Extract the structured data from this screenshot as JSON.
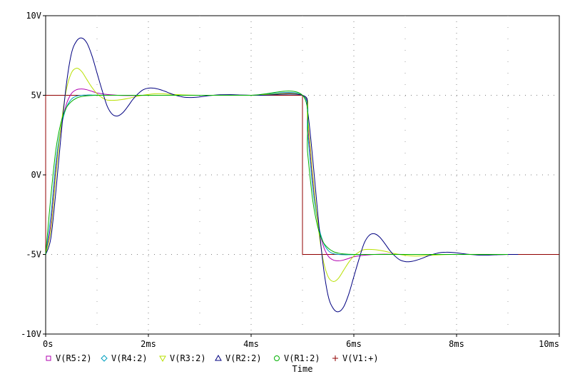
{
  "chart_data": {
    "type": "line",
    "xlabel": "Time",
    "ylabel": "",
    "xlim": [
      0,
      10
    ],
    "ylim": [
      -10,
      10
    ],
    "x_unit": "ms",
    "y_unit": "V",
    "x_ticks": [
      {
        "value": 0,
        "label": "0s"
      },
      {
        "value": 2,
        "label": "2ms"
      },
      {
        "value": 4,
        "label": "4ms"
      },
      {
        "value": 6,
        "label": "6ms"
      },
      {
        "value": 8,
        "label": "8ms"
      },
      {
        "value": 10,
        "label": "10ms"
      }
    ],
    "y_ticks": [
      {
        "value": 10,
        "label": "10V"
      },
      {
        "value": 5,
        "label": "5V"
      },
      {
        "value": 0,
        "label": "0V"
      },
      {
        "value": -5,
        "label": "-5V"
      },
      {
        "value": -10,
        "label": "-10V"
      }
    ],
    "grid": "dotted",
    "legend_position": "bottom-left",
    "series": [
      {
        "name": "V(R5:2)",
        "color": "#b000b0",
        "marker": "square",
        "x": [
          0,
          0.1,
          0.2,
          0.3,
          0.4,
          0.5,
          0.6,
          0.7,
          0.8,
          0.9,
          1.0,
          1.2,
          1.4,
          1.6,
          2.0,
          3.0,
          4.0,
          5.0,
          5.1,
          5.2,
          5.3,
          5.4,
          5.5,
          5.6,
          5.7,
          5.8,
          5.9,
          6.0,
          6.2,
          6.4,
          6.6,
          7.0,
          8.0,
          9.0
        ],
        "y": [
          -5,
          -3.1,
          0.4,
          2.9,
          4.4,
          5.1,
          5.35,
          5.4,
          5.35,
          5.25,
          5.15,
          5.05,
          5.0,
          4.98,
          5.0,
          5.0,
          5.0,
          5.0,
          3.1,
          -0.4,
          -2.9,
          -4.4,
          -5.1,
          -5.35,
          -5.4,
          -5.35,
          -5.25,
          -5.15,
          -5.05,
          -5.0,
          -4.98,
          -5.0,
          -5.0,
          -5.0
        ]
      },
      {
        "name": "V(R4:2)",
        "color": "#00a0c0",
        "marker": "diamond",
        "x": [
          0,
          0.1,
          0.2,
          0.3,
          0.4,
          0.5,
          0.6,
          0.7,
          0.8,
          0.9,
          1.0,
          1.2,
          1.5,
          2.0,
          3.0,
          4.0,
          5.0,
          5.1,
          5.2,
          5.3,
          5.4,
          5.5,
          5.6,
          5.7,
          5.8,
          5.9,
          6.0,
          6.2,
          6.5,
          7.0,
          8.0,
          9.0
        ],
        "y": [
          -5,
          -2.6,
          0.8,
          3.0,
          4.2,
          4.75,
          4.95,
          5.0,
          5.02,
          5.02,
          5.01,
          5.0,
          5.0,
          5.0,
          5.0,
          5.0,
          5.0,
          2.6,
          -0.8,
          -3.0,
          -4.2,
          -4.75,
          -4.95,
          -5.0,
          -5.02,
          -5.02,
          -5.01,
          -5.0,
          -5.0,
          -5.0,
          -5.0,
          -5.0
        ]
      },
      {
        "name": "V(R3:2)",
        "color": "#b8e000",
        "marker": "triangle-down",
        "x": [
          0,
          0.1,
          0.2,
          0.3,
          0.4,
          0.5,
          0.6,
          0.7,
          0.8,
          0.9,
          1.0,
          1.1,
          1.2,
          1.4,
          1.6,
          1.8,
          2.0,
          2.2,
          2.5,
          3.0,
          4.0,
          5.0,
          5.1,
          5.2,
          5.3,
          5.4,
          5.5,
          5.6,
          5.7,
          5.8,
          5.9,
          6.0,
          6.1,
          6.2,
          6.4,
          6.6,
          6.8,
          7.0,
          7.2,
          7.5,
          8.0,
          9.0
        ],
        "y": [
          -5,
          -3.5,
          0.0,
          3.1,
          5.3,
          6.4,
          6.7,
          6.5,
          6.0,
          5.5,
          5.1,
          4.85,
          4.7,
          4.7,
          4.8,
          4.95,
          5.05,
          5.1,
          5.05,
          5.0,
          5.0,
          5.0,
          3.5,
          0.0,
          -3.1,
          -5.3,
          -6.4,
          -6.7,
          -6.5,
          -6.0,
          -5.5,
          -5.1,
          -4.85,
          -4.7,
          -4.7,
          -4.8,
          -4.95,
          -5.05,
          -5.1,
          -5.05,
          -5.0,
          -5.0
        ]
      },
      {
        "name": "V(R2:2)",
        "color": "#000080",
        "marker": "triangle-up",
        "x": [
          0,
          0.1,
          0.2,
          0.3,
          0.4,
          0.5,
          0.6,
          0.7,
          0.8,
          0.9,
          1.0,
          1.1,
          1.2,
          1.3,
          1.4,
          1.5,
          1.6,
          1.7,
          1.8,
          1.9,
          2.0,
          2.1,
          2.2,
          2.3,
          2.4,
          2.5,
          2.6,
          2.7,
          2.8,
          2.9,
          3.0,
          3.2,
          3.4,
          3.6,
          3.8,
          4.0,
          4.2,
          5.0,
          5.1,
          5.2,
          5.3,
          5.4,
          5.5,
          5.6,
          5.7,
          5.8,
          5.9,
          6.0,
          6.1,
          6.2,
          6.3,
          6.4,
          6.5,
          6.6,
          6.7,
          6.8,
          6.9,
          7.0,
          7.1,
          7.2,
          7.3,
          7.4,
          7.5,
          7.6,
          7.7,
          7.8,
          7.9,
          8.0,
          8.2,
          8.4,
          8.6,
          8.8,
          9.0,
          9.2
        ],
        "y": [
          -5,
          -4.0,
          -1.0,
          2.5,
          5.6,
          7.6,
          8.4,
          8.6,
          8.3,
          7.5,
          6.4,
          5.3,
          4.3,
          3.8,
          3.7,
          3.9,
          4.3,
          4.75,
          5.1,
          5.35,
          5.45,
          5.45,
          5.38,
          5.28,
          5.15,
          5.03,
          4.94,
          4.88,
          4.86,
          4.87,
          4.9,
          4.98,
          5.03,
          5.04,
          5.02,
          5.0,
          5.0,
          5.0,
          4.0,
          1.0,
          -2.5,
          -5.6,
          -7.6,
          -8.4,
          -8.6,
          -8.3,
          -7.5,
          -6.4,
          -5.3,
          -4.3,
          -3.8,
          -3.7,
          -3.9,
          -4.3,
          -4.75,
          -5.1,
          -5.35,
          -5.45,
          -5.45,
          -5.38,
          -5.28,
          -5.15,
          -5.03,
          -4.94,
          -4.88,
          -4.86,
          -4.87,
          -4.9,
          -4.98,
          -5.03,
          -5.04,
          -5.02,
          -5.0,
          -5.0
        ]
      },
      {
        "name": "V(R1:2)",
        "color": "#00b000",
        "marker": "circle",
        "x": [
          0,
          0.1,
          0.2,
          0.3,
          0.4,
          0.5,
          0.6,
          0.7,
          0.8,
          1.0,
          1.2,
          1.5,
          2.0,
          3.0,
          4.0,
          5.0,
          5.1,
          5.2,
          5.3,
          5.4,
          5.5,
          5.6,
          5.7,
          5.8,
          6.0,
          6.2,
          6.5,
          7.0,
          8.0,
          9.0
        ],
        "y": [
          -5,
          -1.4,
          1.6,
          3.3,
          4.2,
          4.6,
          4.82,
          4.92,
          4.97,
          5.0,
          5.0,
          5.0,
          5.0,
          5.0,
          5.0,
          5.0,
          1.4,
          -1.6,
          -3.3,
          -4.2,
          -4.6,
          -4.82,
          -4.92,
          -4.97,
          -5.0,
          -5.0,
          -5.0,
          -5.0,
          -5.0,
          -5.0
        ]
      },
      {
        "name": "V(V1:+)",
        "color": "#900000",
        "marker": "plus",
        "x": [
          0,
          0,
          5,
          5,
          10
        ],
        "y": [
          -5,
          5,
          5,
          -5,
          -5
        ]
      }
    ]
  }
}
